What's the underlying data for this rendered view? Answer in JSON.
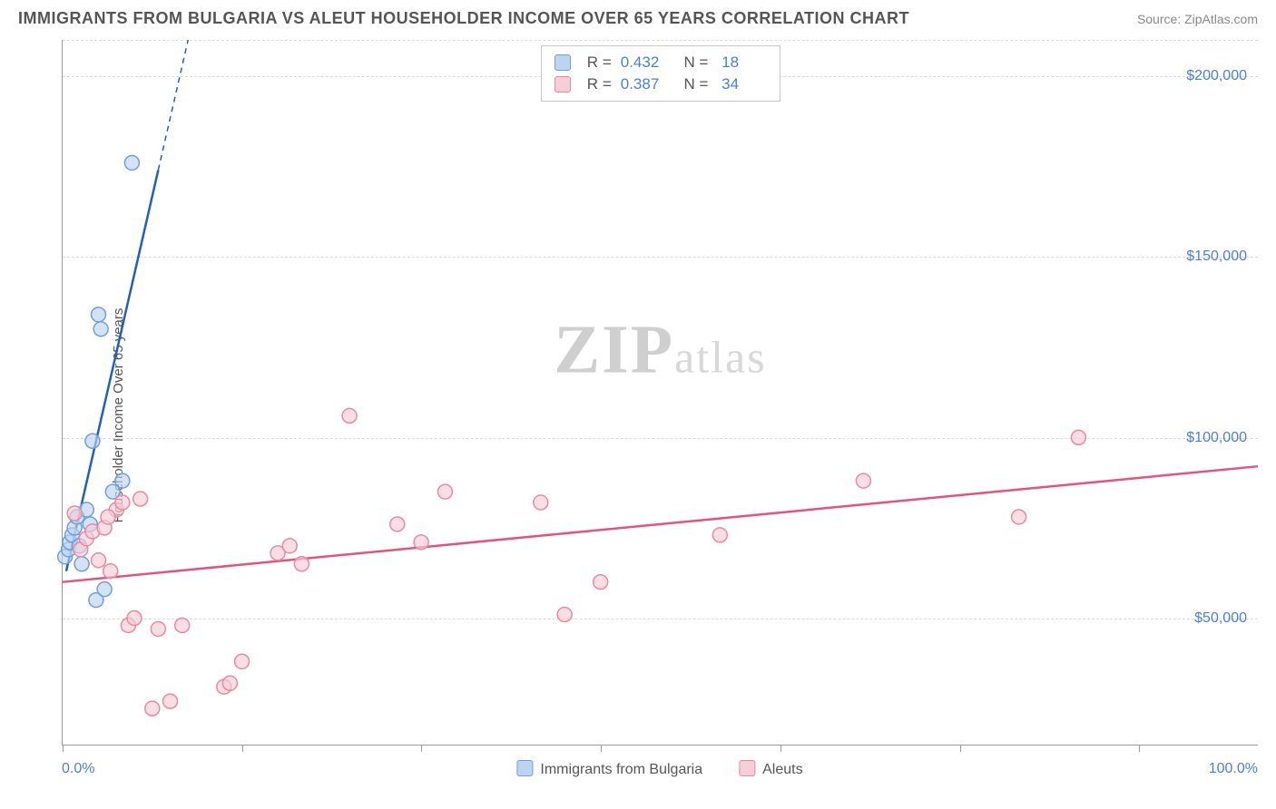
{
  "title": "IMMIGRANTS FROM BULGARIA VS ALEUT HOUSEHOLDER INCOME OVER 65 YEARS CORRELATION CHART",
  "source": "Source: ZipAtlas.com",
  "ylabel": "Householder Income Over 65 years",
  "watermark_main": "ZIP",
  "watermark_tail": "atlas",
  "chart": {
    "type": "scatter",
    "xlim": [
      0,
      100
    ],
    "ylim": [
      15000,
      210000
    ],
    "xtick_min_label": "0.0%",
    "xtick_max_label": "100.0%",
    "ytick_positions": [
      50000,
      100000,
      150000,
      200000
    ],
    "ytick_labels": [
      "$50,000",
      "$100,000",
      "$150,000",
      "$200,000"
    ],
    "xtick_positions": [
      0,
      15,
      30,
      45,
      60,
      75,
      90
    ],
    "grid_color": "#dcdcdc",
    "axis_color": "#999999",
    "ylabel_color": "#4a7fd8",
    "background_color": "#ffffff",
    "marker_radius": 8,
    "marker_stroke_width": 1.5,
    "series": [
      {
        "key": "bulgaria",
        "label": "Immigrants from Bulgaria",
        "fill": "#bcd4f0",
        "stroke": "#6f9ed9",
        "line_color": "#1e5fbf",
        "R": "0.432",
        "N": "18",
        "points": [
          [
            0.2,
            67000
          ],
          [
            0.5,
            69000
          ],
          [
            0.6,
            71000
          ],
          [
            0.8,
            73000
          ],
          [
            1.0,
            75000
          ],
          [
            1.2,
            78000
          ],
          [
            1.4,
            70000
          ],
          [
            1.6,
            65000
          ],
          [
            2.0,
            80000
          ],
          [
            2.3,
            76000
          ],
          [
            2.8,
            55000
          ],
          [
            3.5,
            58000
          ],
          [
            4.2,
            85000
          ],
          [
            5.0,
            88000
          ],
          [
            2.5,
            99000
          ],
          [
            3.0,
            134000
          ],
          [
            3.2,
            130000
          ],
          [
            5.8,
            176000
          ]
        ],
        "trend": {
          "x1": 0.3,
          "y1": 63000,
          "x2": 10.5,
          "y2": 210000,
          "dash_from_x": 8.0
        }
      },
      {
        "key": "aleuts",
        "label": "Aleuts",
        "fill": "#f7cdd7",
        "stroke": "#e88aa0",
        "line_color": "#e6537a",
        "R": "0.387",
        "N": "34",
        "points": [
          [
            1.5,
            69000
          ],
          [
            2.0,
            72000
          ],
          [
            2.5,
            74000
          ],
          [
            3.0,
            66000
          ],
          [
            3.5,
            75000
          ],
          [
            4.0,
            63000
          ],
          [
            4.5,
            80000
          ],
          [
            5.0,
            82000
          ],
          [
            5.5,
            48000
          ],
          [
            6.0,
            50000
          ],
          [
            6.5,
            83000
          ],
          [
            7.5,
            25000
          ],
          [
            8.0,
            47000
          ],
          [
            9.0,
            27000
          ],
          [
            10.0,
            48000
          ],
          [
            13.5,
            31000
          ],
          [
            14.0,
            32000
          ],
          [
            15.0,
            38000
          ],
          [
            18.0,
            68000
          ],
          [
            19.0,
            70000
          ],
          [
            20.0,
            65000
          ],
          [
            24.0,
            106000
          ],
          [
            28.0,
            76000
          ],
          [
            30.0,
            71000
          ],
          [
            32.0,
            85000
          ],
          [
            40.0,
            82000
          ],
          [
            42.0,
            51000
          ],
          [
            45.0,
            60000
          ],
          [
            55.0,
            73000
          ],
          [
            67.0,
            88000
          ],
          [
            80.0,
            78000
          ],
          [
            85.0,
            100000
          ],
          [
            3.8,
            78000
          ],
          [
            1.0,
            79000
          ]
        ],
        "trend": {
          "x1": 0,
          "y1": 60000,
          "x2": 100,
          "y2": 92000
        }
      }
    ]
  },
  "xlegend": [
    {
      "label": "Immigrants from Bulgaria",
      "fill": "#bcd4f0",
      "stroke": "#6f9ed9"
    },
    {
      "label": "Aleuts",
      "fill": "#f7cdd7",
      "stroke": "#e88aa0"
    }
  ]
}
